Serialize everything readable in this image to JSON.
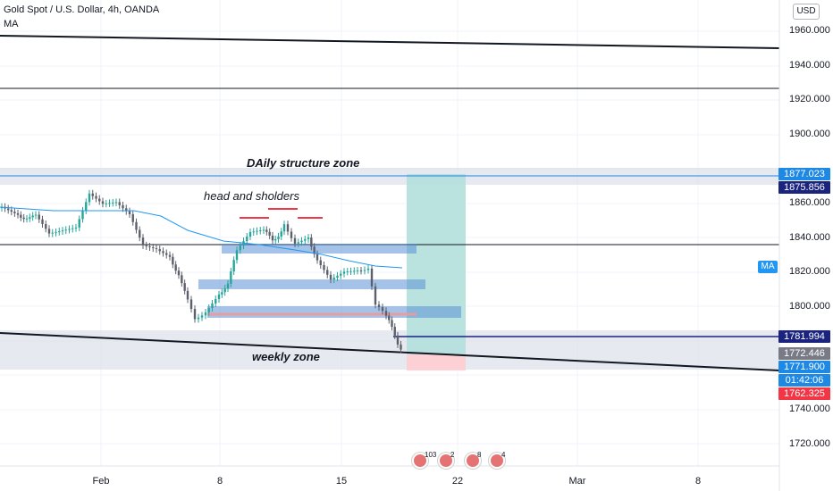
{
  "header": {
    "title": "Gold Spot / U.S. Dollar, 4h, OANDA",
    "indicator": "MA",
    "currency_button": "USD"
  },
  "price_axis": {
    "ticks": [
      "1960.000",
      "1940.000",
      "1920.000",
      "1900.000",
      "1860.000",
      "1840.000",
      "1820.000",
      "1800.000",
      "1740.000",
      "1720.000"
    ]
  },
  "price_tags": [
    {
      "label": "1877.023",
      "color": "#1e88e5",
      "price": 1877.02
    },
    {
      "label": "1875.856",
      "color": "#1a237e",
      "price": 1875.86
    },
    {
      "label": "1781.994",
      "color": "#1a237e",
      "price": 1781.99
    },
    {
      "label": "1772.446",
      "color": "#787b86",
      "price": 1772.45
    },
    {
      "label": "1771.900",
      "color": "#1e88e5",
      "price": 1771.9
    },
    {
      "label": "01:42:06",
      "color": "#1e88e5",
      "price": 1767.1
    },
    {
      "label": "1762.325",
      "color": "#f23645",
      "price": 1762.33
    }
  ],
  "time_axis": {
    "labels": [
      "Feb",
      "8",
      "15",
      "22",
      "Mar",
      "8"
    ]
  },
  "annotations": {
    "daily_zone": "DAily structure zone",
    "head_shoulders": "head and sholders",
    "weekly_zone": "weekly zone"
  },
  "ma_tag": "MA",
  "events": [
    {
      "icon": "us-flag-icon",
      "count": "103"
    },
    {
      "icon": "us-flag-icon",
      "count": "2"
    },
    {
      "icon": "us-flag-icon",
      "count": "8"
    },
    {
      "icon": "us-flag-icon",
      "count": "4"
    }
  ],
  "colors": {
    "bull": "#26a69a",
    "bear": "#5d606b",
    "ma": "#2196f3",
    "zone": "#d1d4dc",
    "rect_blue": "#5b8fd6",
    "profit": "#26a69a",
    "loss": "#f23645"
  }
}
